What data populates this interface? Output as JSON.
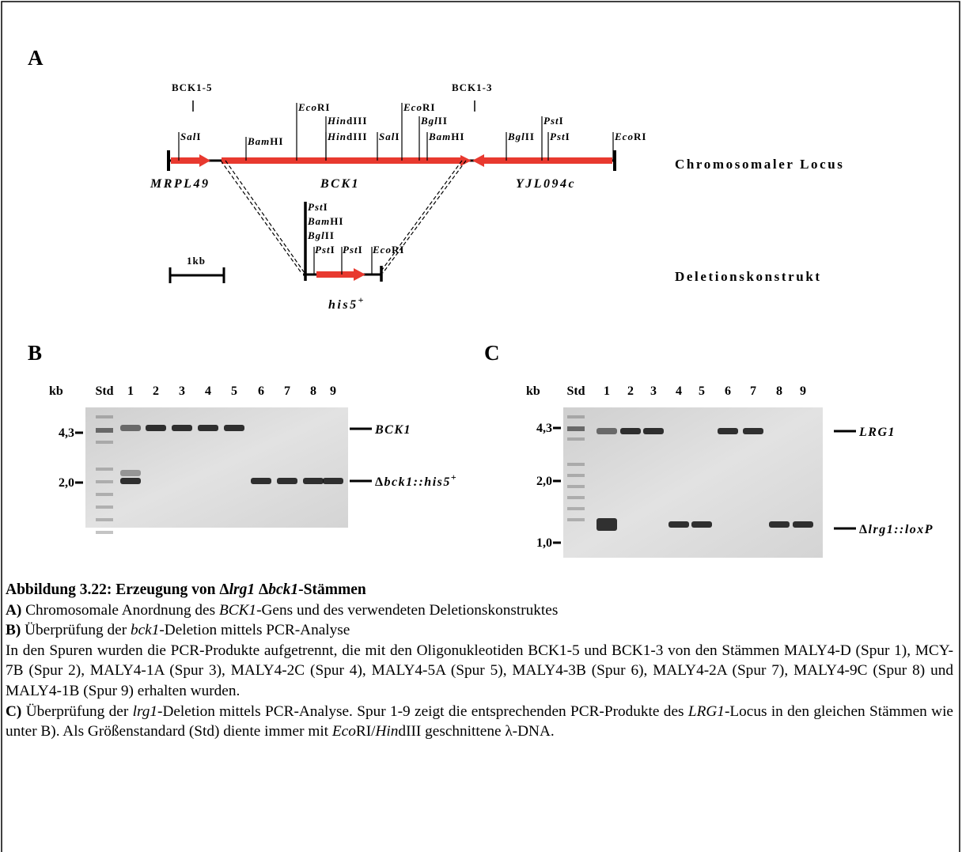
{
  "panels": {
    "a": "A",
    "b": "B",
    "c": "C"
  },
  "diagram": {
    "primers": [
      "BCK1-5",
      "BCK1-3"
    ],
    "sites": [
      {
        "it": "Sal",
        "rm": "I"
      },
      {
        "it": "Bam",
        "rm": "HI"
      },
      {
        "it": "Eco",
        "rm": "RI"
      },
      {
        "it": "Hin",
        "rm": "dIII"
      },
      {
        "it": "Hin",
        "rm": "dIII"
      },
      {
        "it": "Sal",
        "rm": "I"
      },
      {
        "it": "Eco",
        "rm": "RI"
      },
      {
        "it": "Bgl",
        "rm": "II"
      },
      {
        "it": "Bam",
        "rm": "HI"
      },
      {
        "it": "Bgl",
        "rm": "II"
      },
      {
        "it": "Pst",
        "rm": "I"
      },
      {
        "it": "Pst",
        "rm": "I"
      },
      {
        "it": "Eco",
        "rm": "RI"
      }
    ],
    "genes": [
      "MRPL49",
      "BCK1",
      "YJL094c"
    ],
    "locus_label": "Chromosomaler Locus",
    "construct_sites": [
      {
        "it": "Pst",
        "rm": "I"
      },
      {
        "it": "Bam",
        "rm": "HI"
      },
      {
        "it": "Bgl",
        "rm": "II"
      },
      {
        "it": "Pst",
        "rm": "I"
      },
      {
        "it": "Pst",
        "rm": "I"
      },
      {
        "it": "Eco",
        "rm": "RI"
      }
    ],
    "construct_gene": {
      "text": "his5",
      "sup": "+"
    },
    "construct_label": "Deletionskonstrukt",
    "scale_bar": "1kb"
  },
  "gel_b": {
    "unit": "kb",
    "std": "Std",
    "lanes": [
      "1",
      "2",
      "3",
      "4",
      "5",
      "6",
      "7",
      "8",
      "9"
    ],
    "markers": [
      "4,3",
      "2,0"
    ],
    "bands": [
      {
        "text": "BCK1"
      },
      {
        "prefix": "Δ",
        "text": "bck1::his5",
        "sup": "+"
      }
    ]
  },
  "gel_c": {
    "unit": "kb",
    "std": "Std",
    "lanes": [
      "1",
      "2",
      "3",
      "4",
      "5",
      "6",
      "7",
      "8",
      "9"
    ],
    "markers": [
      "4,3",
      "2,0",
      "1,0"
    ],
    "bands": [
      {
        "text": "LRG1"
      },
      {
        "prefix": "Δ",
        "text": "lrg1::loxP"
      }
    ]
  },
  "caption": {
    "paragraphs": [
      {
        "runs": [
          {
            "text": "Abbildung 3.22: Erzeugung von Δ",
            "bold": true
          },
          {
            "text": "lrg1",
            "bold": true,
            "italic": true
          },
          {
            "text": " Δ",
            "bold": true
          },
          {
            "text": "bck1",
            "bold": true,
            "italic": true
          },
          {
            "text": "-Stämmen",
            "bold": true
          }
        ]
      },
      {
        "runs": [
          {
            "text": "A)",
            "bold": true
          },
          {
            "text": " Chromosomale Anordnung des "
          },
          {
            "text": "BCK1",
            "italic": true
          },
          {
            "text": "-Gens und des verwendeten Deletionskonstruktes"
          }
        ]
      },
      {
        "runs": [
          {
            "text": "B)",
            "bold": true
          },
          {
            "text": " Überprüfung der "
          },
          {
            "text": "bck1",
            "italic": true
          },
          {
            "text": "-Deletion mittels PCR-Analyse"
          }
        ]
      },
      {
        "runs": [
          {
            "text": "In den Spuren wurden die PCR-Produkte aufgetrennt, die mit den Oligonukleotiden BCK1-5 und BCK1-3 von den Stämmen MALY4-D (Spur 1), MCY-7B (Spur 2), MALY4-1A (Spur 3), MALY4-2C (Spur 4), MALY4-5A (Spur 5), MALY4-3B (Spur 6), MALY4-2A (Spur 7), MALY4-9C (Spur 8) und MALY4-1B (Spur 9) erhalten wurden."
          }
        ]
      },
      {
        "runs": [
          {
            "text": "C)",
            "bold": true
          },
          {
            "text": " Überprüfung der "
          },
          {
            "text": "lrg1",
            "italic": true
          },
          {
            "text": "-Deletion mittels PCR-Analyse. Spur 1-9 zeigt die entsprechenden PCR-Produkte des "
          },
          {
            "text": "LRG1",
            "italic": true
          },
          {
            "text": "-Locus in den gleichen Stämmen wie unter B). Als Größenstandard (Std) diente immer mit "
          },
          {
            "text": "Eco",
            "italic": true
          },
          {
            "text": "RI/"
          },
          {
            "text": "Hin",
            "italic": true
          },
          {
            "text": "dIII geschnittene λ-DNA."
          }
        ]
      }
    ]
  }
}
